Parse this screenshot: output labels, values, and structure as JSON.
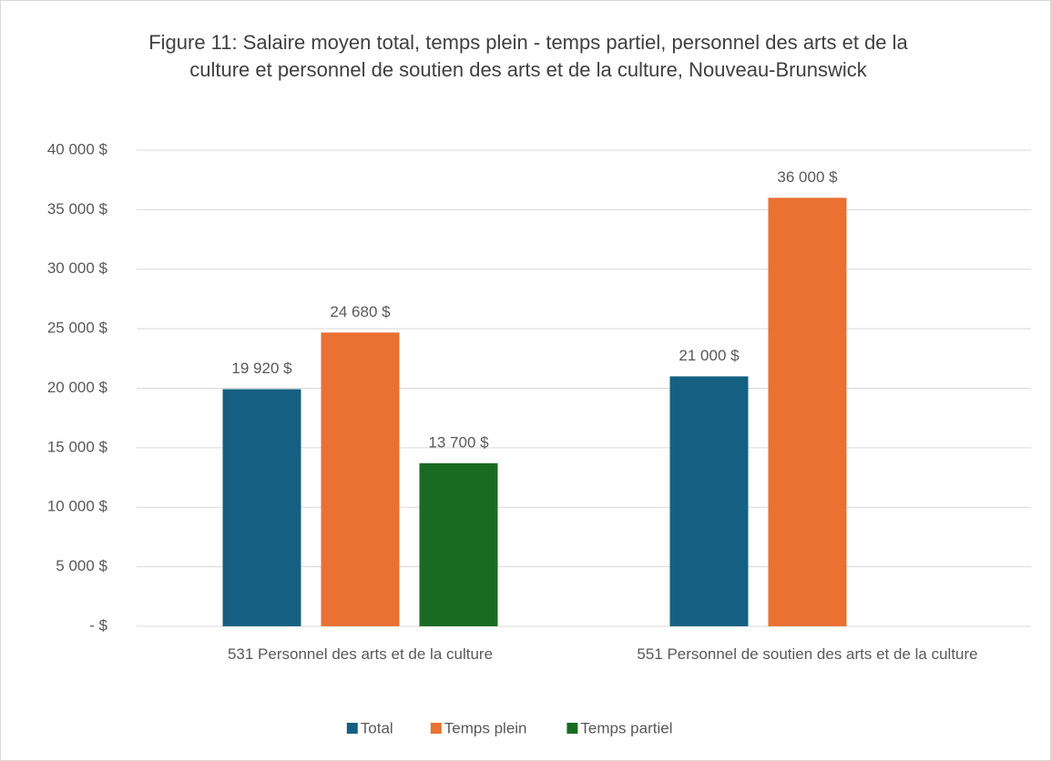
{
  "chart_data": {
    "type": "bar",
    "title": "Figure 11: Salaire moyen total, temps plein - temps partiel, personnel des arts et de la culture et personnel de soutien des arts et de la culture, Nouveau-Brunswick",
    "categories": [
      "531 Personnel des arts et de la culture",
      "551 Personnel de soutien des arts et de la culture"
    ],
    "series": [
      {
        "name": "Total",
        "color": "#156082",
        "values": [
          19920,
          21000
        ],
        "value_labels": [
          "19 920 $",
          "21 000 $"
        ]
      },
      {
        "name": "Temps plein",
        "color": "#e97132",
        "values": [
          24680,
          36000
        ],
        "value_labels": [
          "24 680 $",
          "36 000 $"
        ]
      },
      {
        "name": "Temps partiel",
        "color": "#196b24",
        "values": [
          13700,
          null
        ],
        "value_labels": [
          "13 700 $",
          null
        ]
      }
    ],
    "ylim": [
      0,
      40000
    ],
    "yticks": [
      {
        "value": 0,
        "label": "-   $"
      },
      {
        "value": 5000,
        "label": "5 000 $"
      },
      {
        "value": 10000,
        "label": "10 000 $"
      },
      {
        "value": 15000,
        "label": "15 000 $"
      },
      {
        "value": 20000,
        "label": "20 000 $"
      },
      {
        "value": 25000,
        "label": "25 000 $"
      },
      {
        "value": 30000,
        "label": "30 000 $"
      },
      {
        "value": 35000,
        "label": "35 000 $"
      },
      {
        "value": 40000,
        "label": "40 000 $"
      }
    ],
    "grid": true,
    "legend": "bottom"
  }
}
